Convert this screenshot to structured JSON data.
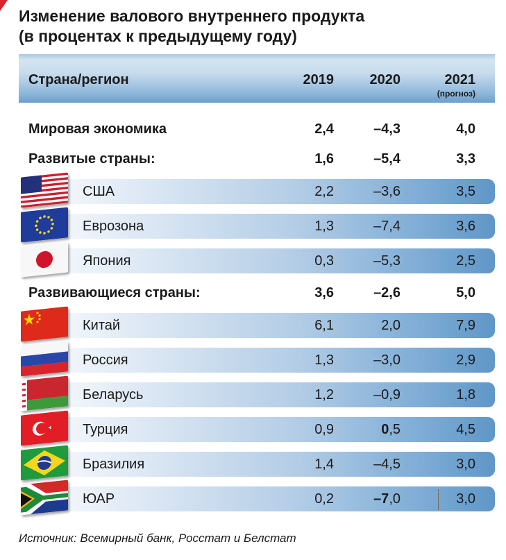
{
  "title_line1": "Изменение валового внутреннего продукта",
  "title_line2": "(в процентах к предыдущему году)",
  "header": {
    "region": "Страна/регион",
    "y1": "2019",
    "y2": "2020",
    "y3": "2021",
    "y3_note": "(прогноз)"
  },
  "rows": [
    {
      "label": "Мировая экономика",
      "v2019": "2,4",
      "v2020": "–4,3",
      "v2021": "4,0"
    },
    {
      "label": "Развитые страны:",
      "v2019": "1,6",
      "v2020": "–5,4",
      "v2021": "3,3"
    },
    {
      "label": "США",
      "v2019": "2,2",
      "v2020": "–3,6",
      "v2021": "3,5",
      "flag": "usa-flag"
    },
    {
      "label": "Еврозона",
      "v2019": "1,3",
      "v2020": "–7,4",
      "v2021": "3,6",
      "flag": "eu-flag"
    },
    {
      "label": "Япония",
      "v2019": "0,3",
      "v2020": "–5,3",
      "v2021": "2,5",
      "flag": "japan-flag"
    },
    {
      "label": "Развивающиеся страны:",
      "v2019": "3,6",
      "v2020": "–2,6",
      "v2021": "5,0"
    },
    {
      "label": "Китай",
      "v2019": "6,1",
      "v2020": "2,0",
      "v2021": "7,9",
      "flag": "china-flag"
    },
    {
      "label": "Россия",
      "v2019": "1,3",
      "v2020": "–3,0",
      "v2021": "2,9",
      "flag": "russia-flag"
    },
    {
      "label": "Беларусь",
      "v2019": "1,2",
      "v2020": "–0,9",
      "v2021": "1,8",
      "flag": "belarus-flag"
    },
    {
      "label": "Турция",
      "v2019": "0,9",
      "v2020_a": "0",
      "v2020_b": ",5",
      "v2021": "4,5",
      "flag": "turkey-flag"
    },
    {
      "label": "Бразилия",
      "v2019": "1,4",
      "v2020": "–4,5",
      "v2021": "3,0",
      "flag": "brazil-flag"
    },
    {
      "label": "ЮАР",
      "v2019": "0,2",
      "v2020_a": "–7",
      "v2020_b": ",0",
      "v2021": "3,0",
      "flag": "south-africa-flag"
    }
  ],
  "source": "Источник: Всемирный банк, Росстат и Белстат",
  "colors": {
    "accent_red": "#d9232d",
    "bar_blue": "#5f97c8"
  }
}
